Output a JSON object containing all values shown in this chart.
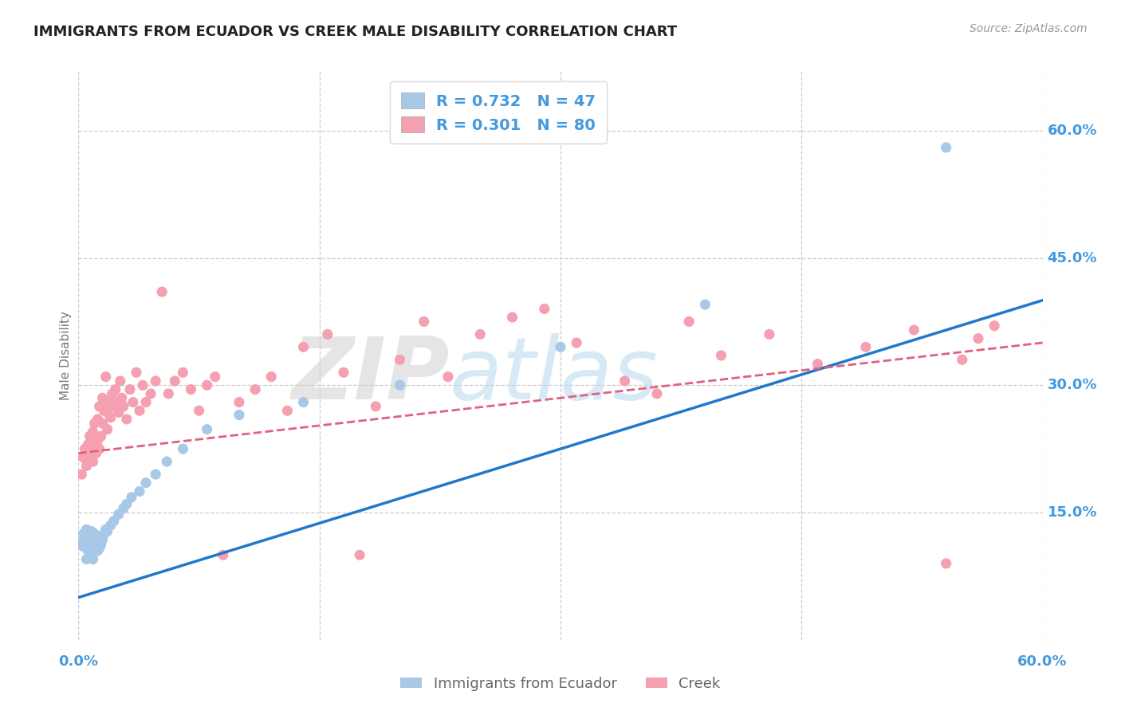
{
  "title": "IMMIGRANTS FROM ECUADOR VS CREEK MALE DISABILITY CORRELATION CHART",
  "source": "Source: ZipAtlas.com",
  "ylabel": "Male Disability",
  "xlim": [
    0.0,
    0.6
  ],
  "ylim": [
    0.0,
    0.67
  ],
  "ytick_positions": [
    0.15,
    0.3,
    0.45,
    0.6
  ],
  "ytick_labels": [
    "15.0%",
    "30.0%",
    "45.0%",
    "60.0%"
  ],
  "xtick_positions": [
    0.0,
    0.15,
    0.3,
    0.45,
    0.6
  ],
  "background_color": "#ffffff",
  "ecuador_color": "#a8c8e8",
  "creek_color": "#f4a0b0",
  "ecuador_R": 0.732,
  "ecuador_N": 47,
  "creek_R": 0.301,
  "creek_N": 80,
  "ecuador_line_color": "#2277cc",
  "creek_line_color": "#e06080",
  "label_color": "#4499dd",
  "grid_color": "#cccccc",
  "ecuador_line_start_y": 0.05,
  "ecuador_line_end_y": 0.4,
  "creek_line_start_y": 0.22,
  "creek_line_end_y": 0.35,
  "ecuador_x": [
    0.002,
    0.003,
    0.003,
    0.004,
    0.005,
    0.005,
    0.005,
    0.006,
    0.006,
    0.007,
    0.007,
    0.008,
    0.008,
    0.009,
    0.009,
    0.009,
    0.01,
    0.01,
    0.011,
    0.011,
    0.012,
    0.012,
    0.013,
    0.013,
    0.014,
    0.015,
    0.016,
    0.017,
    0.018,
    0.02,
    0.022,
    0.025,
    0.028,
    0.03,
    0.033,
    0.038,
    0.042,
    0.048,
    0.055,
    0.065,
    0.08,
    0.1,
    0.14,
    0.2,
    0.3,
    0.39,
    0.54
  ],
  "ecuador_y": [
    0.115,
    0.125,
    0.11,
    0.12,
    0.108,
    0.13,
    0.095,
    0.118,
    0.105,
    0.122,
    0.112,
    0.128,
    0.098,
    0.115,
    0.105,
    0.095,
    0.118,
    0.125,
    0.11,
    0.12,
    0.105,
    0.115,
    0.108,
    0.122,
    0.112,
    0.118,
    0.125,
    0.13,
    0.128,
    0.135,
    0.14,
    0.148,
    0.155,
    0.16,
    0.168,
    0.175,
    0.185,
    0.195,
    0.21,
    0.225,
    0.248,
    0.265,
    0.28,
    0.3,
    0.345,
    0.395,
    0.58
  ],
  "creek_x": [
    0.002,
    0.003,
    0.004,
    0.005,
    0.006,
    0.007,
    0.007,
    0.008,
    0.009,
    0.009,
    0.01,
    0.01,
    0.011,
    0.012,
    0.012,
    0.013,
    0.013,
    0.014,
    0.015,
    0.015,
    0.016,
    0.017,
    0.018,
    0.018,
    0.019,
    0.02,
    0.021,
    0.022,
    0.023,
    0.024,
    0.025,
    0.026,
    0.027,
    0.028,
    0.03,
    0.032,
    0.034,
    0.036,
    0.038,
    0.04,
    0.042,
    0.045,
    0.048,
    0.052,
    0.056,
    0.06,
    0.065,
    0.07,
    0.075,
    0.08,
    0.085,
    0.09,
    0.1,
    0.11,
    0.12,
    0.13,
    0.14,
    0.155,
    0.165,
    0.175,
    0.185,
    0.2,
    0.215,
    0.23,
    0.25,
    0.27,
    0.29,
    0.31,
    0.34,
    0.36,
    0.38,
    0.4,
    0.43,
    0.46,
    0.49,
    0.52,
    0.54,
    0.55,
    0.56,
    0.57
  ],
  "creek_y": [
    0.195,
    0.215,
    0.225,
    0.205,
    0.23,
    0.218,
    0.24,
    0.225,
    0.21,
    0.245,
    0.23,
    0.255,
    0.22,
    0.26,
    0.235,
    0.225,
    0.275,
    0.24,
    0.285,
    0.255,
    0.27,
    0.31,
    0.248,
    0.268,
    0.28,
    0.262,
    0.29,
    0.275,
    0.295,
    0.28,
    0.268,
    0.305,
    0.285,
    0.275,
    0.26,
    0.295,
    0.28,
    0.315,
    0.27,
    0.3,
    0.28,
    0.29,
    0.305,
    0.41,
    0.29,
    0.305,
    0.315,
    0.295,
    0.27,
    0.3,
    0.31,
    0.1,
    0.28,
    0.295,
    0.31,
    0.27,
    0.345,
    0.36,
    0.315,
    0.1,
    0.275,
    0.33,
    0.375,
    0.31,
    0.36,
    0.38,
    0.39,
    0.35,
    0.305,
    0.29,
    0.375,
    0.335,
    0.36,
    0.325,
    0.345,
    0.365,
    0.09,
    0.33,
    0.355,
    0.37
  ]
}
